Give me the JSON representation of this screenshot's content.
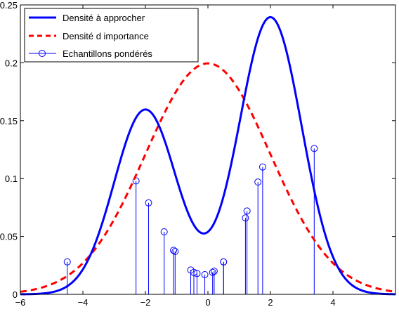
{
  "chart_data": {
    "type": "line",
    "title": "",
    "xlabel": "",
    "ylabel": "",
    "xlim": [
      -6,
      6
    ],
    "ylim": [
      0,
      0.25
    ],
    "xticks": [
      -6,
      -4,
      -2,
      0,
      2,
      4
    ],
    "xtick_labels": [
      "−6",
      "−4",
      "−2",
      "0",
      "2",
      "4"
    ],
    "yticks": [
      0,
      0.05,
      0.1,
      0.15,
      0.2,
      0.25
    ],
    "ytick_labels": [
      "0",
      "0.05",
      "0.1",
      "0.15",
      "0.2",
      "0.25"
    ],
    "grid": false,
    "legend_position": "top-left",
    "series": [
      {
        "name": "Densité à approcher",
        "kind": "line",
        "color": "#0000ff",
        "style": "solid",
        "formula": "0.4*N(x;-2,1)+0.6*N(x;2,1)"
      },
      {
        "name": "Densité d importance",
        "kind": "line",
        "color": "#ff0000",
        "style": "dashed",
        "formula": "N(x;0,2)"
      },
      {
        "name": "Echantillons pondérés",
        "kind": "stem",
        "color": "#0000ff",
        "marker": "circle",
        "x": [
          -4.5,
          -2.3,
          -1.9,
          -1.4,
          -1.1,
          -1.05,
          -0.55,
          -0.45,
          -0.35,
          -0.1,
          0.15,
          0.2,
          0.5,
          0.5,
          1.2,
          1.25,
          1.6,
          1.75,
          3.4
        ],
        "y": [
          0.028,
          0.098,
          0.079,
          0.054,
          0.038,
          0.037,
          0.021,
          0.019,
          0.018,
          0.017,
          0.019,
          0.02,
          0.028,
          0.028,
          0.066,
          0.072,
          0.097,
          0.11,
          0.126
        ]
      }
    ]
  }
}
